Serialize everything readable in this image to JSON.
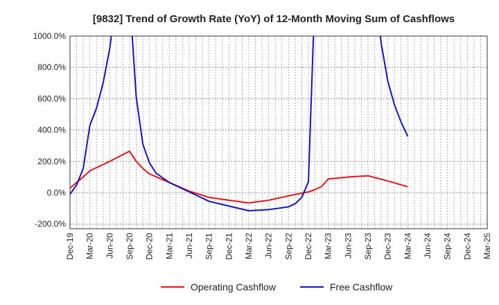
{
  "chart_data": {
    "type": "line",
    "title": "[9832]  Trend of Growth Rate (YoY) of 12-Month Moving Sum of Cashflows",
    "xlabel": "",
    "ylabel": "",
    "y_unit": "%",
    "ylim": [
      -230,
      1000
    ],
    "y_ticks": [
      -200,
      0,
      200,
      400,
      600,
      800,
      1000
    ],
    "y_tick_labels": [
      "-200.0%",
      "0.0%",
      "200.0%",
      "400.0%",
      "600.0%",
      "800.0%",
      "1000.0%"
    ],
    "x_range": [
      "2019-12",
      "2025-03"
    ],
    "x_ticks": [
      "2019-12",
      "2020-03",
      "2020-06",
      "2020-09",
      "2020-12",
      "2021-03",
      "2021-06",
      "2021-09",
      "2021-12",
      "2022-03",
      "2022-06",
      "2022-09",
      "2022-12",
      "2023-03",
      "2023-06",
      "2023-09",
      "2023-12",
      "2024-03",
      "2024-06",
      "2024-09",
      "2024-12",
      "2025-03"
    ],
    "x_tick_labels": [
      "Dec-19",
      "Mar-20",
      "Jun-20",
      "Sep-20",
      "Dec-20",
      "Mar-21",
      "Jun-21",
      "Sep-21",
      "Dec-21",
      "Mar-22",
      "Jun-22",
      "Sep-22",
      "Dec-22",
      "Mar-23",
      "Jun-23",
      "Sep-23",
      "Dec-23",
      "Mar-24",
      "Jun-24",
      "Sep-24",
      "Dec-24",
      "Mar-25"
    ],
    "grid": true,
    "legend_position": "bottom",
    "series": [
      {
        "name": "Operating Cashflow",
        "color": "#ee1111",
        "points": [
          [
            "2019-12",
            30
          ],
          [
            "2020-01",
            65
          ],
          [
            "2020-02",
            100
          ],
          [
            "2020-03",
            140
          ],
          [
            "2020-06",
            200
          ],
          [
            "2020-09",
            265
          ],
          [
            "2020-10",
            200
          ],
          [
            "2020-11",
            155
          ],
          [
            "2020-12",
            120
          ],
          [
            "2021-03",
            65
          ],
          [
            "2021-06",
            10
          ],
          [
            "2021-09",
            -30
          ],
          [
            "2021-12",
            -48
          ],
          [
            "2022-03",
            -65
          ],
          [
            "2022-06",
            -48
          ],
          [
            "2022-09",
            -20
          ],
          [
            "2022-12",
            5
          ],
          [
            "2023-01",
            20
          ],
          [
            "2023-02",
            40
          ],
          [
            "2023-03",
            88
          ],
          [
            "2023-06",
            100
          ],
          [
            "2023-09",
            108
          ],
          [
            "2023-12",
            75
          ],
          [
            "2024-03",
            38
          ]
        ]
      },
      {
        "name": "Free Cashflow",
        "color": "#1111cc",
        "points": [
          [
            "2019-12",
            -10
          ],
          [
            "2020-01",
            50
          ],
          [
            "2020-02",
            155
          ],
          [
            "2020-03",
            430
          ],
          [
            "2020-04",
            540
          ],
          [
            "2020-05",
            700
          ],
          [
            "2020-06",
            920
          ],
          [
            "2020-07",
            1250
          ],
          [
            "2020-09",
            1250
          ],
          [
            "2020-10",
            610
          ],
          [
            "2020-11",
            310
          ],
          [
            "2020-12",
            190
          ],
          [
            "2021-01",
            125
          ],
          [
            "2021-03",
            65
          ],
          [
            "2021-06",
            5
          ],
          [
            "2021-09",
            -55
          ],
          [
            "2021-12",
            -85
          ],
          [
            "2022-03",
            -115
          ],
          [
            "2022-06",
            -108
          ],
          [
            "2022-09",
            -90
          ],
          [
            "2022-10",
            -70
          ],
          [
            "2022-11",
            -30
          ],
          [
            "2022-12",
            70
          ],
          [
            "2023-01",
            1300
          ],
          [
            "2023-10",
            1300
          ],
          [
            "2023-11",
            950
          ],
          [
            "2023-12",
            710
          ],
          [
            "2024-01",
            560
          ],
          [
            "2024-02",
            450
          ],
          [
            "2024-03",
            360
          ]
        ]
      }
    ]
  }
}
